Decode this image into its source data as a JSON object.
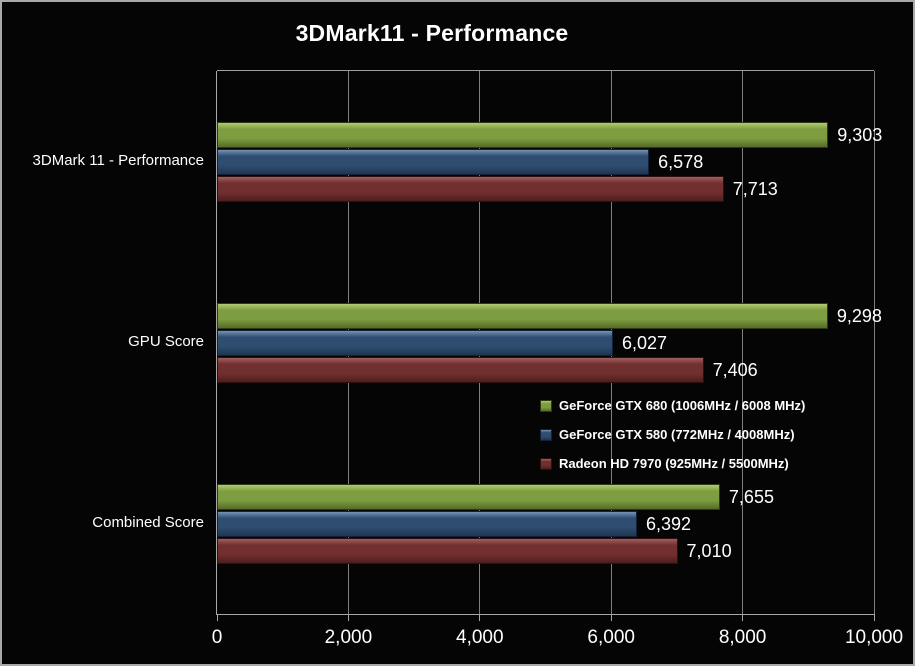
{
  "colors": {
    "background": "#050505",
    "text": "#ffffff",
    "gridline": "#7f7f7f",
    "axis_line": "#a8a8a8",
    "chart_border": "#a9a9a9",
    "series_palette": {
      "green": {
        "hi": "#b2ca70",
        "mid": "#7e9d41",
        "lo": "#556c26",
        "border": "#2e3a12"
      },
      "blue": {
        "hi": "#7492b2",
        "mid": "#2f4d70",
        "lo": "#1e3651",
        "border": "#122138"
      },
      "red": {
        "hi": "#a05e5e",
        "mid": "#722f2f",
        "lo": "#4e1e1e",
        "border": "#2e0f0f"
      }
    }
  },
  "chart_data": {
    "type": "bar",
    "orientation": "horizontal",
    "title": "3DMark11 - Performance",
    "xlabel": "",
    "ylabel": "",
    "categories": [
      "3DMark 11 - Performance",
      "GPU Score",
      "Combined Score"
    ],
    "series": [
      {
        "name": "GeForce GTX 680 (1006MHz / 6008 MHz)",
        "color_key": "green",
        "values": [
          9303,
          9298,
          7655
        ]
      },
      {
        "name": "GeForce GTX 580 (772MHz / 4008MHz)",
        "color_key": "blue",
        "values": [
          6578,
          6027,
          6392
        ]
      },
      {
        "name": "Radeon HD 7970 (925MHz / 5500MHz)",
        "color_key": "red",
        "values": [
          7713,
          7406,
          7010
        ]
      }
    ],
    "data_labels": [
      [
        "9,303",
        "6,578",
        "7,713"
      ],
      [
        "9,298",
        "6,027",
        "7,406"
      ],
      [
        "7,655",
        "6,392",
        "7,010"
      ]
    ],
    "xlim": [
      0,
      10000
    ],
    "x_ticks": [
      {
        "value": 0,
        "label": "0"
      },
      {
        "value": 2000,
        "label": "2,000"
      },
      {
        "value": 4000,
        "label": "4,000"
      },
      {
        "value": 6000,
        "label": "6,000"
      },
      {
        "value": 8000,
        "label": "8,000"
      },
      {
        "value": 10000,
        "label": "10,000"
      }
    ],
    "grid": true,
    "legend_position": "inside-right-middle"
  }
}
